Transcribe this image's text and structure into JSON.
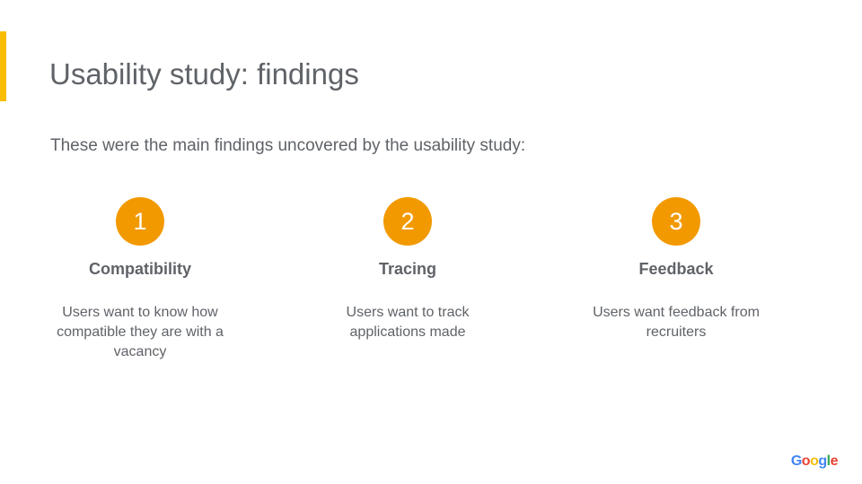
{
  "slide": {
    "title": "Usability study: findings",
    "subtitle": "These were the main findings uncovered by the usability study:",
    "accent_color": "#fbbc04",
    "circle_color": "#f29900"
  },
  "findings": [
    {
      "number": "1",
      "heading": "Compatibility",
      "description": "Users want to know how compatible they are with a vacancy"
    },
    {
      "number": "2",
      "heading": "Tracing",
      "description": "Users want to track applications made"
    },
    {
      "number": "3",
      "heading": "Feedback",
      "description": "Users want feedback from recruiters"
    }
  ],
  "logo": {
    "text": "Google",
    "letters": [
      "G",
      "o",
      "o",
      "g",
      "l",
      "e"
    ],
    "colors": [
      "#4285f4",
      "#ea4335",
      "#fbbc04",
      "#4285f4",
      "#34a853",
      "#ea4335"
    ]
  }
}
